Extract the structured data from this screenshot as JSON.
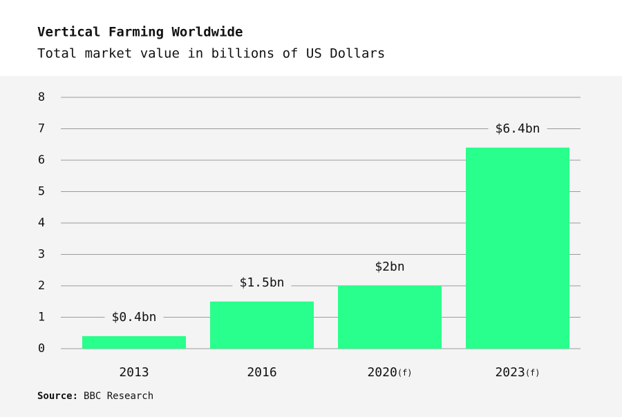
{
  "chart_data": {
    "type": "bar",
    "title": "Vertical Farming Worldwide",
    "subtitle": "Total market value in billions of US Dollars",
    "categories": [
      "2013",
      "2016",
      "2020(f)",
      "2023(f)"
    ],
    "values": [
      0.4,
      1.5,
      2,
      6.4
    ],
    "value_labels": [
      "$0.4bn",
      "$1.5bn",
      "$2bn",
      "$6.4bn"
    ],
    "color": "#29ff8c",
    "ylim": [
      0,
      8
    ],
    "yticks": [
      0,
      1,
      2,
      3,
      4,
      5,
      6,
      7,
      8
    ],
    "grid": true,
    "source_label": "Source:",
    "source": "BBC Research"
  }
}
